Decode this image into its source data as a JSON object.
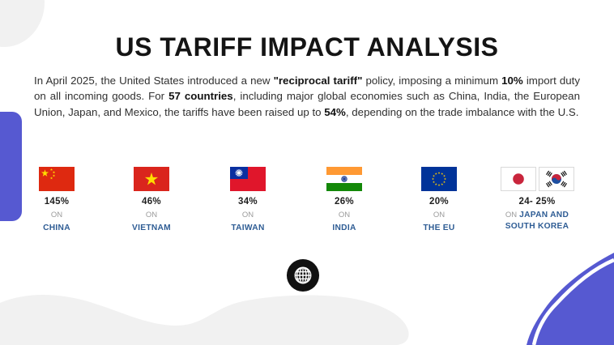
{
  "title": "US TARIFF IMPACT ANALYSIS",
  "intro": {
    "segments": [
      {
        "bold": false,
        "text": "In April 2025, the United States introduced a new "
      },
      {
        "bold": true,
        "text": "\"reciprocal tariff\""
      },
      {
        "bold": false,
        "text": " policy, imposing a minimum "
      },
      {
        "bold": true,
        "text": "10%"
      },
      {
        "bold": false,
        "text": " import duty on all incoming goods. For "
      },
      {
        "bold": true,
        "text": "57 countries"
      },
      {
        "bold": false,
        "text": ", including major global economies such as China, India, the European Union, Japan, and Mexico, the tariffs have been raised up to "
      },
      {
        "bold": true,
        "text": "54%"
      },
      {
        "bold": false,
        "text": ", depending on the trade imbalance with the U.S."
      }
    ]
  },
  "tariff_cards": [
    {
      "flags": [
        "china-flag"
      ],
      "rate": "145%",
      "on_label": "ON",
      "country": "CHINA"
    },
    {
      "flags": [
        "vietnam-flag"
      ],
      "rate": "46%",
      "on_label": "ON",
      "country": "VIETNAM"
    },
    {
      "flags": [
        "taiwan-flag"
      ],
      "rate": "34%",
      "on_label": "ON",
      "country": "TAIWAN"
    },
    {
      "flags": [
        "india-flag"
      ],
      "rate": "26%",
      "on_label": "ON",
      "country": "INDIA"
    },
    {
      "flags": [
        "eu-flag"
      ],
      "rate": "20%",
      "on_label": "ON",
      "country": "THE EU"
    },
    {
      "flags": [
        "japan-flag",
        "south-korea-flag"
      ],
      "rate": "24- 25%",
      "on_label": "ON",
      "country": "JAPAN AND SOUTH KOREA"
    }
  ],
  "footer_icon": "globe-icon",
  "colors": {
    "accent_purple": "#5659d1",
    "decoration_gray": "#f1f1f1",
    "country_blue": "#2e5c94",
    "rate_text": "#1f1f1f",
    "on_gray": "#9b9b9b",
    "globe_black": "#111111"
  }
}
